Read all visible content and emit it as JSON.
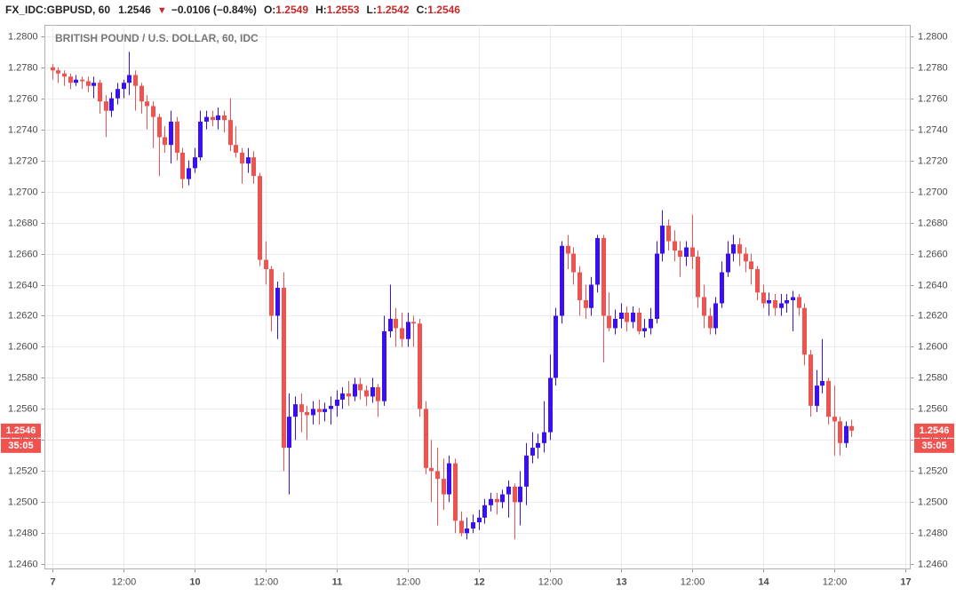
{
  "header": {
    "symbol": "FX_IDC:GBPUSD, 60",
    "last": "1.2546",
    "change": "−0.0106 (−0.84%)",
    "open_label": "O:",
    "open": "1.2549",
    "high_label": "H:",
    "high": "1.2553",
    "low_label": "L:",
    "low": "1.2542",
    "close_label": "C:",
    "close": "1.2546"
  },
  "chart_data": {
    "type": "candlestick",
    "title": "BRITISH POUND / U.S. DOLLAR, 60, IDC",
    "up_color": "#3a0ff2",
    "down_color": "#ef5350",
    "grid": true,
    "last_price": {
      "value": 1.2546,
      "label": "1.2546"
    },
    "countdown": "35:05",
    "xlim": [
      -1.2,
      144.9
    ],
    "ylim": [
      1.2457,
      1.2807
    ],
    "xticks": [
      {
        "value": 0,
        "label": "7"
      },
      {
        "value": 12,
        "label": "12:00"
      },
      {
        "value": 24,
        "label": "10"
      },
      {
        "value": 36,
        "label": "12:00"
      },
      {
        "value": 48,
        "label": "11"
      },
      {
        "value": 60,
        "label": "12:00"
      },
      {
        "value": 72,
        "label": "12"
      },
      {
        "value": 84,
        "label": "12:00"
      },
      {
        "value": 96,
        "label": "13"
      },
      {
        "value": 108,
        "label": "12:00"
      },
      {
        "value": 120,
        "label": "14"
      },
      {
        "value": 132,
        "label": "12:00"
      },
      {
        "value": 144,
        "label": "17"
      }
    ],
    "yticks": [
      {
        "value": 1.246,
        "label": "1.2460"
      },
      {
        "value": 1.248,
        "label": "1.2480"
      },
      {
        "value": 1.25,
        "label": "1.2500"
      },
      {
        "value": 1.252,
        "label": "1.2520"
      },
      {
        "value": 1.254,
        "label": "1.2540"
      },
      {
        "value": 1.256,
        "label": "1.2560"
      },
      {
        "value": 1.258,
        "label": "1.2580"
      },
      {
        "value": 1.26,
        "label": "1.2600"
      },
      {
        "value": 1.262,
        "label": "1.2620"
      },
      {
        "value": 1.264,
        "label": "1.2640"
      },
      {
        "value": 1.266,
        "label": "1.2660"
      },
      {
        "value": 1.268,
        "label": "1.2680"
      },
      {
        "value": 1.27,
        "label": "1.2700"
      },
      {
        "value": 1.272,
        "label": "1.2720"
      },
      {
        "value": 1.274,
        "label": "1.2740"
      },
      {
        "value": 1.276,
        "label": "1.2760"
      },
      {
        "value": 1.278,
        "label": "1.2780"
      },
      {
        "value": 1.28,
        "label": "1.2800"
      }
    ],
    "x": [
      0,
      1,
      2,
      3,
      4,
      5,
      6,
      7,
      8,
      9,
      10,
      11,
      12,
      13,
      14,
      15,
      16,
      17,
      18,
      19,
      20,
      21,
      22,
      23,
      24,
      25,
      26,
      27,
      28,
      29,
      30,
      31,
      32,
      33,
      34,
      35,
      36,
      37,
      38,
      39,
      40,
      41,
      42,
      43,
      44,
      45,
      46,
      47,
      48,
      49,
      50,
      51,
      52,
      53,
      54,
      55,
      56,
      57,
      58,
      59,
      60,
      61,
      62,
      63,
      64,
      65,
      66,
      67,
      68,
      69,
      70,
      71,
      72,
      73,
      74,
      75,
      76,
      77,
      78,
      79,
      80,
      81,
      82,
      83,
      84,
      85,
      86,
      87,
      88,
      89,
      90,
      91,
      92,
      93,
      94,
      95,
      96,
      97,
      98,
      99,
      100,
      101,
      102,
      103,
      104,
      105,
      106,
      107,
      108,
      109,
      110,
      111,
      112,
      113,
      114,
      115,
      116,
      117,
      118,
      119,
      120,
      121,
      122,
      123,
      124,
      125,
      126,
      127,
      128,
      129,
      130,
      131,
      132,
      133,
      134,
      135
    ],
    "candles": [
      [
        1.278,
        1.2782,
        1.2772,
        1.2778
      ],
      [
        1.2778,
        1.278,
        1.277,
        1.2776
      ],
      [
        1.2776,
        1.2778,
        1.2768,
        1.2774
      ],
      [
        1.2774,
        1.2776,
        1.2766,
        1.277
      ],
      [
        1.277,
        1.2775,
        1.2768,
        1.2772
      ],
      [
        1.2772,
        1.2774,
        1.2766,
        1.2771
      ],
      [
        1.2771,
        1.2774,
        1.2764,
        1.2768
      ],
      [
        1.2768,
        1.2774,
        1.276,
        1.277
      ],
      [
        1.277,
        1.2772,
        1.275,
        1.2758
      ],
      [
        1.2758,
        1.2762,
        1.2735,
        1.2752
      ],
      [
        1.2752,
        1.2764,
        1.2748,
        1.276
      ],
      [
        1.276,
        1.277,
        1.2756,
        1.2766
      ],
      [
        1.2766,
        1.2772,
        1.276,
        1.277
      ],
      [
        1.277,
        1.279,
        1.2762,
        1.2775
      ],
      [
        1.2775,
        1.2778,
        1.2752,
        1.2768
      ],
      [
        1.2768,
        1.277,
        1.275,
        1.2758
      ],
      [
        1.2758,
        1.2762,
        1.274,
        1.2755
      ],
      [
        1.2755,
        1.2758,
        1.2728,
        1.2748
      ],
      [
        1.2748,
        1.275,
        1.271,
        1.2735
      ],
      [
        1.2735,
        1.2742,
        1.2725,
        1.273
      ],
      [
        1.273,
        1.2752,
        1.2718,
        1.2745
      ],
      [
        1.2745,
        1.2748,
        1.272,
        1.2725
      ],
      [
        1.2725,
        1.2728,
        1.2702,
        1.2708
      ],
      [
        1.2708,
        1.272,
        1.2704,
        1.2715
      ],
      [
        1.2715,
        1.2728,
        1.2712,
        1.2722
      ],
      [
        1.2722,
        1.2752,
        1.272,
        1.2745
      ],
      [
        1.2745,
        1.2752,
        1.274,
        1.2748
      ],
      [
        1.2748,
        1.2752,
        1.2742,
        1.2746
      ],
      [
        1.2746,
        1.2754,
        1.274,
        1.2749
      ],
      [
        1.2749,
        1.2752,
        1.2738,
        1.2746
      ],
      [
        1.2746,
        1.276,
        1.2726,
        1.273
      ],
      [
        1.273,
        1.2742,
        1.2722,
        1.2725
      ],
      [
        1.2725,
        1.2728,
        1.2705,
        1.2718
      ],
      [
        1.2718,
        1.2728,
        1.2712,
        1.2722
      ],
      [
        1.2722,
        1.2726,
        1.2705,
        1.271
      ],
      [
        1.271,
        1.2712,
        1.2652,
        1.2656
      ],
      [
        1.2656,
        1.2668,
        1.264,
        1.265
      ],
      [
        1.265,
        1.2652,
        1.261,
        1.262
      ],
      [
        1.262,
        1.2642,
        1.2605,
        1.2638
      ],
      [
        1.2638,
        1.2648,
        1.252,
        1.2535
      ],
      [
        1.2535,
        1.257,
        1.2505,
        1.2555
      ],
      [
        1.2555,
        1.2568,
        1.254,
        1.2563
      ],
      [
        1.2563,
        1.257,
        1.2545,
        1.2558
      ],
      [
        1.2558,
        1.2562,
        1.254,
        1.2556
      ],
      [
        1.2556,
        1.2565,
        1.255,
        1.256
      ],
      [
        1.256,
        1.2566,
        1.255,
        1.2558
      ],
      [
        1.2558,
        1.2564,
        1.2552,
        1.256
      ],
      [
        1.256,
        1.2568,
        1.255,
        1.2562
      ],
      [
        1.2562,
        1.2572,
        1.2555,
        1.2566
      ],
      [
        1.2566,
        1.2574,
        1.256,
        1.257
      ],
      [
        1.257,
        1.2578,
        1.2562,
        1.2568
      ],
      [
        1.2568,
        1.258,
        1.2565,
        1.2576
      ],
      [
        1.2576,
        1.258,
        1.2566,
        1.2572
      ],
      [
        1.2572,
        1.2575,
        1.2562,
        1.2568
      ],
      [
        1.2568,
        1.258,
        1.2564,
        1.2574
      ],
      [
        1.2574,
        1.2576,
        1.2555,
        1.2565
      ],
      [
        1.2565,
        1.262,
        1.2562,
        1.261
      ],
      [
        1.261,
        1.264,
        1.2606,
        1.2618
      ],
      [
        1.2618,
        1.2625,
        1.26,
        1.2612
      ],
      [
        1.2612,
        1.2622,
        1.26,
        1.2605
      ],
      [
        1.2605,
        1.2622,
        1.26,
        1.2616
      ],
      [
        1.2616,
        1.262,
        1.26,
        1.2615
      ],
      [
        1.2615,
        1.2618,
        1.2555,
        1.256
      ],
      [
        1.256,
        1.2565,
        1.2518,
        1.2522
      ],
      [
        1.2522,
        1.254,
        1.25,
        1.252
      ],
      [
        1.252,
        1.2535,
        1.2485,
        1.2515
      ],
      [
        1.2515,
        1.2528,
        1.2495,
        1.2505
      ],
      [
        1.2505,
        1.253,
        1.25,
        1.2525
      ],
      [
        1.2525,
        1.2528,
        1.248,
        1.2488
      ],
      [
        1.2488,
        1.2494,
        1.2478,
        1.248
      ],
      [
        1.248,
        1.249,
        1.2476,
        1.2483
      ],
      [
        1.2483,
        1.2492,
        1.248,
        1.2487
      ],
      [
        1.2487,
        1.2495,
        1.2482,
        1.249
      ],
      [
        1.249,
        1.2502,
        1.2486,
        1.2498
      ],
      [
        1.2498,
        1.2506,
        1.2494,
        1.2502
      ],
      [
        1.2502,
        1.2506,
        1.2492,
        1.25
      ],
      [
        1.25,
        1.2508,
        1.2496,
        1.2505
      ],
      [
        1.2505,
        1.2514,
        1.249,
        1.251
      ],
      [
        1.251,
        1.2512,
        1.2476,
        1.25
      ],
      [
        1.25,
        1.252,
        1.2485,
        1.251
      ],
      [
        1.251,
        1.2538,
        1.2498,
        1.253
      ],
      [
        1.253,
        1.2545,
        1.2525,
        1.2535
      ],
      [
        1.2535,
        1.2544,
        1.2528,
        1.2538
      ],
      [
        1.2538,
        1.2565,
        1.2532,
        1.2545
      ],
      [
        1.2545,
        1.2595,
        1.254,
        1.258
      ],
      [
        1.258,
        1.2625,
        1.2575,
        1.262
      ],
      [
        1.262,
        1.2668,
        1.2615,
        1.2665
      ],
      [
        1.2665,
        1.2672,
        1.265,
        1.266
      ],
      [
        1.266,
        1.2664,
        1.264,
        1.2648
      ],
      [
        1.2648,
        1.2652,
        1.262,
        1.263
      ],
      [
        1.263,
        1.264,
        1.2618,
        1.2625
      ],
      [
        1.2625,
        1.2645,
        1.262,
        1.264
      ],
      [
        1.264,
        1.2672,
        1.2635,
        1.267
      ],
      [
        1.267,
        1.2672,
        1.259,
        1.262
      ],
      [
        1.262,
        1.2635,
        1.261,
        1.2612
      ],
      [
        1.2612,
        1.2624,
        1.2608,
        1.2618
      ],
      [
        1.2618,
        1.2628,
        1.2612,
        1.2622
      ],
      [
        1.2622,
        1.2626,
        1.261,
        1.2616
      ],
      [
        1.2616,
        1.2626,
        1.2612,
        1.2622
      ],
      [
        1.2622,
        1.2625,
        1.2608,
        1.261
      ],
      [
        1.261,
        1.2618,
        1.2606,
        1.2612
      ],
      [
        1.2612,
        1.2625,
        1.2608,
        1.2618
      ],
      [
        1.2618,
        1.2668,
        1.2615,
        1.266
      ],
      [
        1.266,
        1.2688,
        1.2655,
        1.2678
      ],
      [
        1.2678,
        1.2682,
        1.2662,
        1.2668
      ],
      [
        1.2668,
        1.2675,
        1.2655,
        1.2662
      ],
      [
        1.2662,
        1.2668,
        1.2645,
        1.2658
      ],
      [
        1.2658,
        1.2668,
        1.2652,
        1.2664
      ],
      [
        1.2664,
        1.2685,
        1.265,
        1.2658
      ],
      [
        1.2658,
        1.2662,
        1.2625,
        1.2632
      ],
      [
        1.2632,
        1.264,
        1.2612,
        1.262
      ],
      [
        1.262,
        1.2625,
        1.2608,
        1.2612
      ],
      [
        1.2612,
        1.2632,
        1.2608,
        1.2628
      ],
      [
        1.2628,
        1.2655,
        1.2625,
        1.2648
      ],
      [
        1.2648,
        1.2668,
        1.2645,
        1.266
      ],
      [
        1.266,
        1.2672,
        1.2655,
        1.2666
      ],
      [
        1.2666,
        1.267,
        1.2652,
        1.266
      ],
      [
        1.266,
        1.2664,
        1.2648,
        1.2655
      ],
      [
        1.2655,
        1.266,
        1.264,
        1.265
      ],
      [
        1.265,
        1.2652,
        1.263,
        1.2635
      ],
      [
        1.2635,
        1.264,
        1.2625,
        1.2628
      ],
      [
        1.2628,
        1.2635,
        1.262,
        1.263
      ],
      [
        1.263,
        1.2634,
        1.262,
        1.2625
      ],
      [
        1.2625,
        1.2634,
        1.262,
        1.2628
      ],
      [
        1.2628,
        1.2634,
        1.2622,
        1.263
      ],
      [
        1.263,
        1.2636,
        1.261,
        1.2632
      ],
      [
        1.2632,
        1.2634,
        1.262,
        1.2625
      ],
      [
        1.2625,
        1.2628,
        1.2588,
        1.2595
      ],
      [
        1.2595,
        1.2598,
        1.2555,
        1.2562
      ],
      [
        1.2562,
        1.2585,
        1.2558,
        1.2575
      ],
      [
        1.2575,
        1.2605,
        1.257,
        1.2578
      ],
      [
        1.2578,
        1.258,
        1.255,
        1.2555
      ],
      [
        1.2555,
        1.2575,
        1.253,
        1.2552
      ],
      [
        1.2552,
        1.2555,
        1.253,
        1.2538
      ],
      [
        1.2538,
        1.2552,
        1.2535,
        1.2549
      ],
      [
        1.2549,
        1.2553,
        1.2542,
        1.2546
      ]
    ]
  }
}
